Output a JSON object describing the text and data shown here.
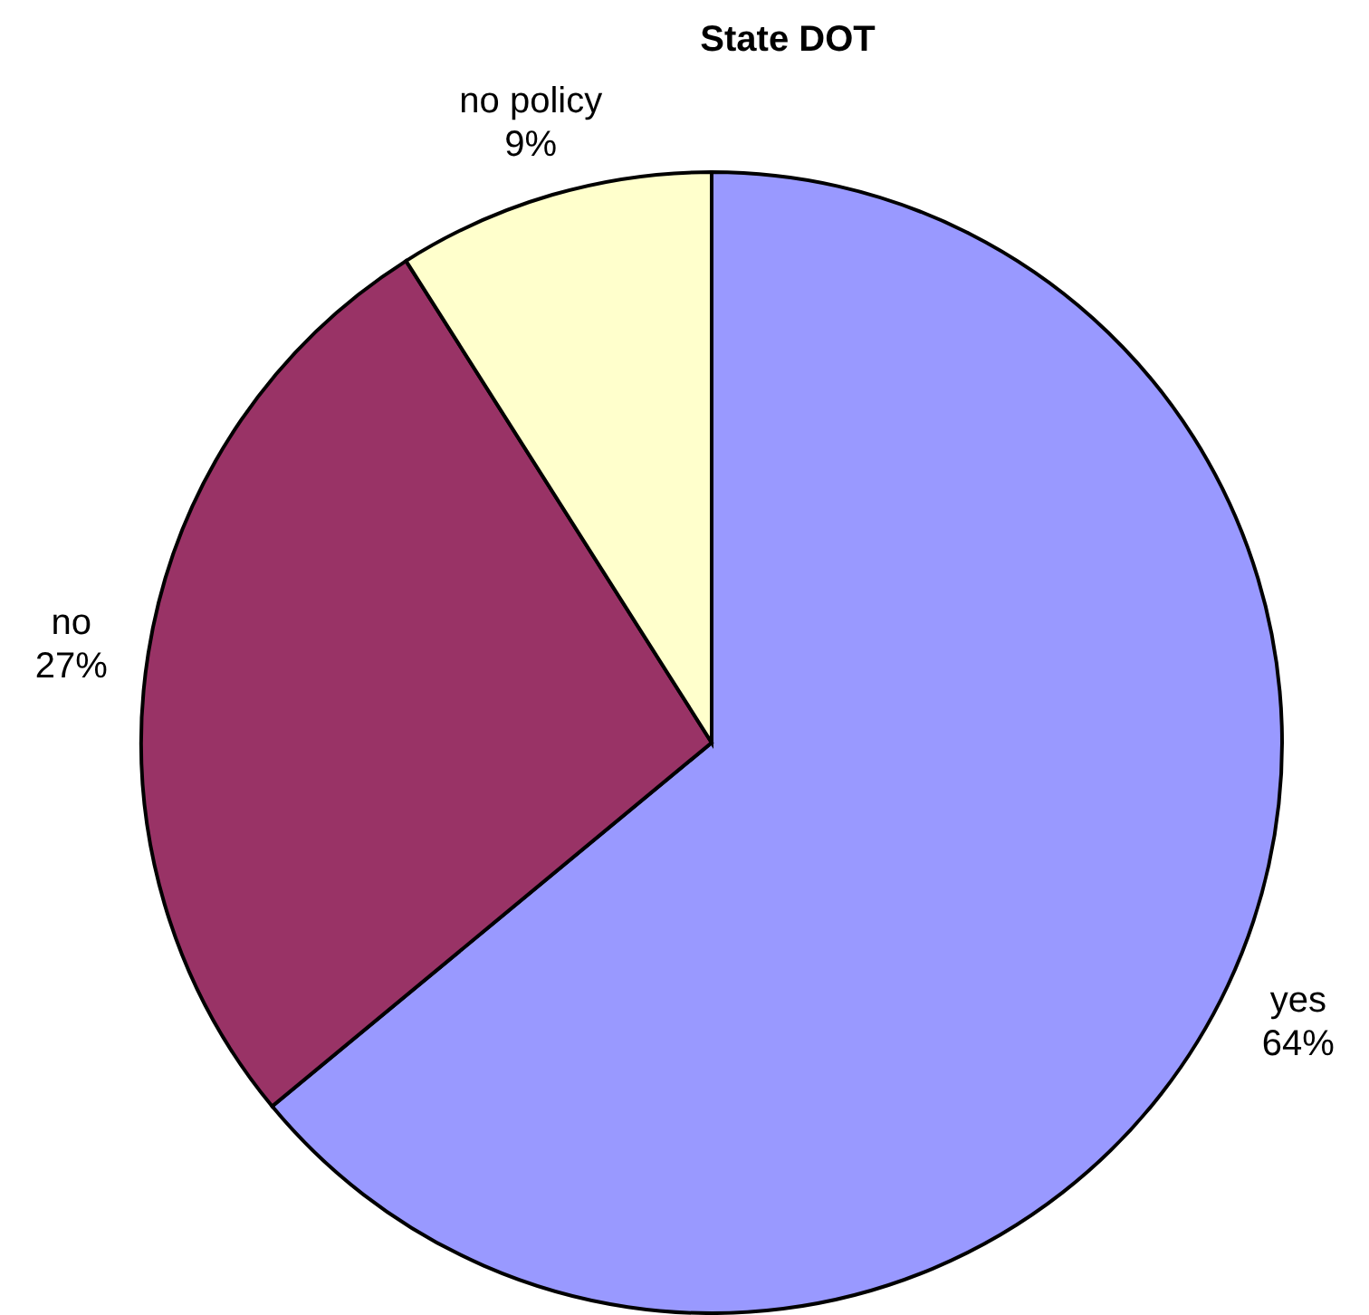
{
  "chart_data": {
    "type": "pie",
    "title": "State DOT",
    "categories": [
      "yes",
      "no",
      "no policy"
    ],
    "values": [
      64,
      27,
      9
    ],
    "colors": [
      "#9999ff",
      "#993366",
      "#ffffcc"
    ],
    "value_labels": [
      "64%",
      "27%",
      "9%"
    ],
    "legend": false
  }
}
